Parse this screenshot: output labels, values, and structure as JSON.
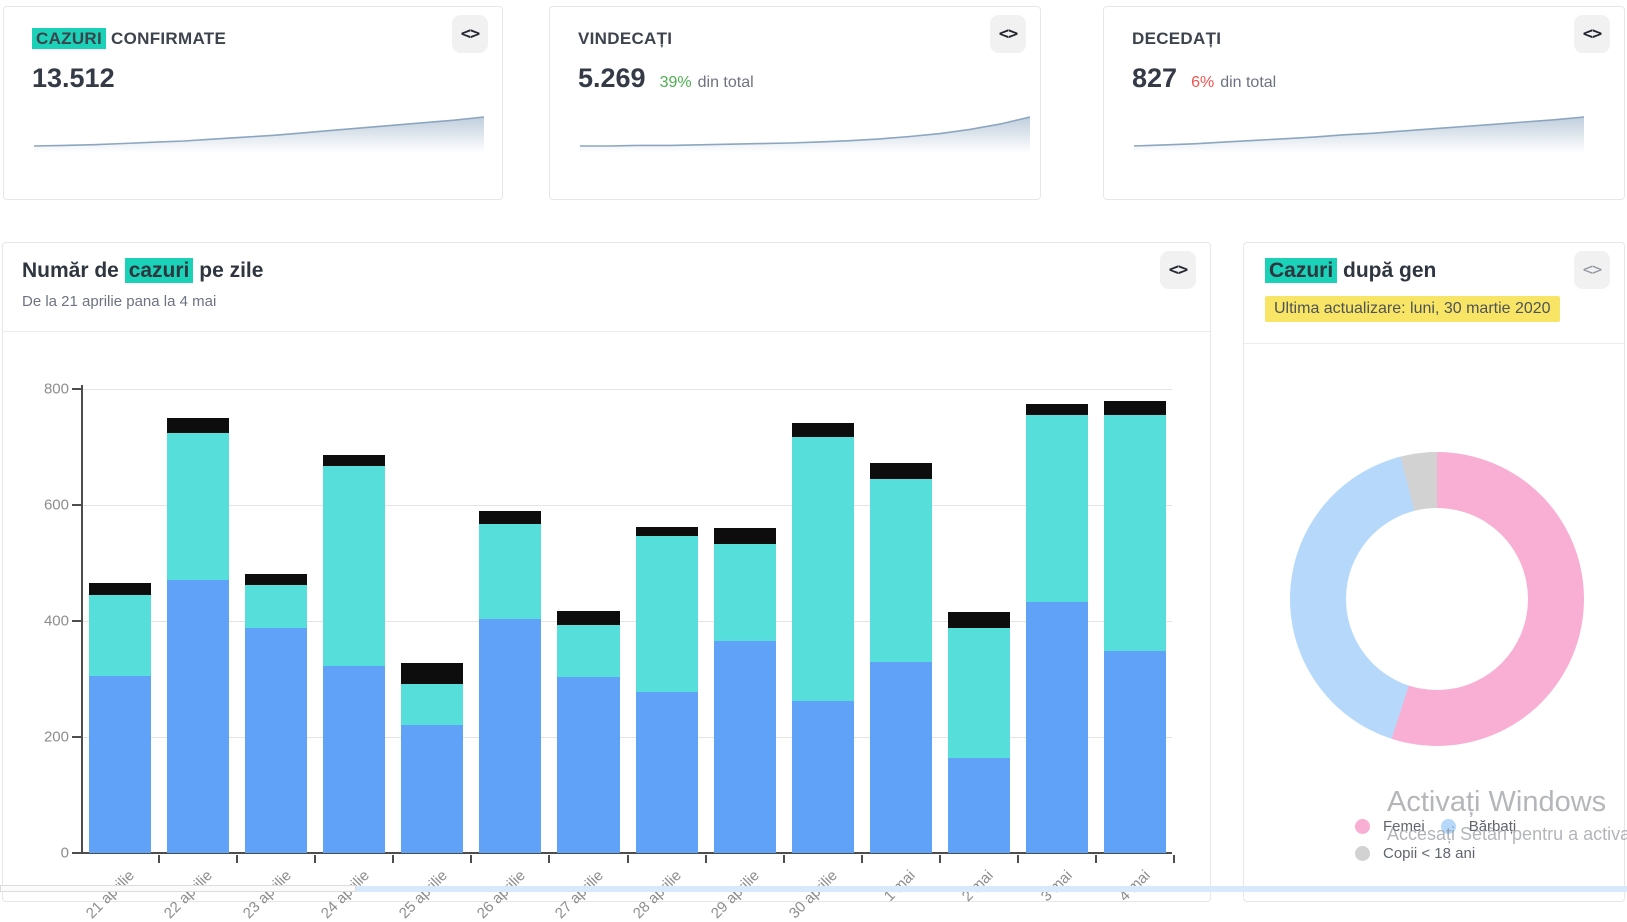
{
  "colors": {
    "teal": "#1bd1b7",
    "yellow": "#f8e565",
    "green": "#4caf50",
    "red": "#ef5350",
    "bar_blue": "#5fa2f8",
    "bar_cyan": "#56dedb",
    "bar_black": "#0d0d0d",
    "donut_pink": "#f8afd3",
    "donut_blue": "#b5d8fb",
    "donut_gray": "#d2d2d2",
    "spark_line": "#8ca6c0"
  },
  "ui": {
    "code_icon": "<>"
  },
  "stat_cards": [
    {
      "title_hl": "CAZURI",
      "title_rest": " CONFIRMATE",
      "value": "13.512",
      "pct": "",
      "pct_note": "",
      "pct_color": "",
      "sparkline": [
        10,
        11,
        12,
        14,
        16,
        18,
        21,
        24,
        27,
        31,
        35,
        39,
        43,
        47,
        51,
        56
      ]
    },
    {
      "title_hl": "",
      "title_rest": "VINDECAȚI",
      "value": "5.269",
      "pct": "39%",
      "pct_note": "din total",
      "pct_color": "#4caf50",
      "sparkline": [
        6,
        6,
        7,
        7,
        8,
        9,
        10,
        11,
        13,
        15,
        18,
        22,
        27,
        34,
        43,
        55
      ]
    },
    {
      "title_hl": "",
      "title_rest": "DECEDAȚI",
      "value": "827",
      "pct": "6%",
      "pct_note": "din total",
      "pct_color": "#ef5350",
      "sparkline": [
        8,
        10,
        12,
        15,
        18,
        21,
        24,
        28,
        31,
        35,
        39,
        43,
        47,
        51,
        55,
        60
      ]
    }
  ],
  "bar_card": {
    "title_pre": "Număr de ",
    "title_hl": "cazuri",
    "title_post": " pe zile",
    "subtitle": "De la 21 aprilie pana la 4 mai"
  },
  "gender_card": {
    "title_hl": "Cazuri",
    "title_post": " după gen",
    "updated": "Ultima actualizare: luni, 30 martie 2020",
    "legend": [
      {
        "label": "Femei",
        "color": "#f8afd3"
      },
      {
        "label": "Bărbați",
        "color": "#b5d8fb"
      },
      {
        "label": "Copii < 18 ani",
        "color": "#d2d2d2"
      }
    ]
  },
  "chart_data": [
    {
      "type": "bar",
      "stacked": true,
      "title": "Număr de cazuri pe zile",
      "subtitle": "De la 21 aprilie pana la 4 mai",
      "categories": [
        "21 aprilie",
        "22 aprilie",
        "23 aprilie",
        "24 aprilie",
        "25 aprilie",
        "26 aprilie",
        "27 aprilie",
        "28 aprilie",
        "29 aprilie",
        "30 aprilie",
        "1 mai",
        "2 mai",
        "3 mai",
        "4 mai"
      ],
      "series": [
        {
          "name": "blue-segment",
          "color": "#5fa2f8",
          "values": [
            305,
            470,
            388,
            322,
            220,
            403,
            303,
            277,
            365,
            262,
            329,
            164,
            432,
            349
          ]
        },
        {
          "name": "cyan-segment",
          "color": "#56dedb",
          "values": [
            140,
            255,
            75,
            345,
            72,
            165,
            90,
            270,
            167,
            456,
            316,
            224,
            323,
            406
          ]
        },
        {
          "name": "black-segment",
          "color": "#0d0d0d",
          "values": [
            20,
            25,
            18,
            20,
            35,
            22,
            25,
            15,
            28,
            24,
            28,
            27,
            20,
            25
          ]
        }
      ],
      "totals": [
        465,
        750,
        481,
        687,
        327,
        590,
        418,
        562,
        560,
        742,
        673,
        415,
        775,
        780
      ],
      "xlabel": "",
      "ylabel": "",
      "ylim": [
        0,
        800
      ],
      "yticks": [
        0,
        200,
        400,
        600,
        800
      ],
      "grid": true,
      "x_label_rotation": -45
    },
    {
      "type": "pie",
      "donut": true,
      "title": "Cazuri după gen",
      "labels": [
        "Femei",
        "Bărbați",
        "Copii < 18 ani"
      ],
      "values": [
        55,
        41,
        4
      ],
      "unit": "percent",
      "colors": [
        "#f8afd3",
        "#b5d8fb",
        "#d2d2d2"
      ],
      "legend_position": "bottom"
    }
  ],
  "watermark": {
    "line1": "Activați Windows",
    "line2": "Accesați Setări pentru a activa W"
  }
}
